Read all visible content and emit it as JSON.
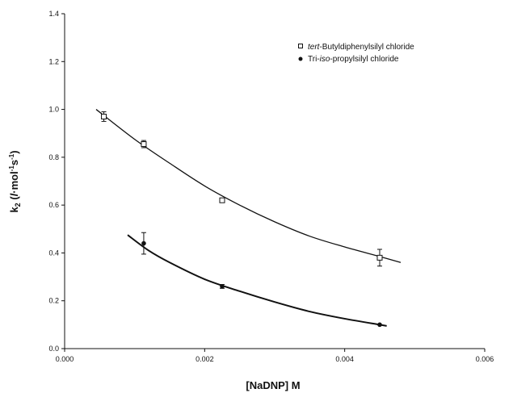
{
  "chart_data": {
    "type": "scatter",
    "title": "",
    "xlabel": "[NaDNP] M",
    "ylabel": {
      "main": "k",
      "sub": "2",
      "units_open": " (",
      "u1": "l",
      "u2": "·mol",
      "u3": "-1",
      "u4": "s",
      "u5": "-1",
      "units_close": ")"
    },
    "xlim": [
      0.0,
      0.006
    ],
    "ylim": [
      0.0,
      1.4
    ],
    "x_ticks": [
      0.0,
      0.002,
      0.004,
      0.006
    ],
    "x_tick_labels": [
      "0.000",
      "0.002",
      "0.004",
      "0.006"
    ],
    "y_ticks": [
      0.0,
      0.2,
      0.4,
      0.6,
      0.8,
      1.0,
      1.2,
      1.4
    ],
    "y_tick_labels": [
      "0.0",
      "0.2",
      "0.4",
      "0.6",
      "0.8",
      "1.0",
      "1.2",
      "1.4"
    ],
    "grid": false,
    "legend_position": "top-right",
    "series": [
      {
        "name": "tert-Butyldiphenylsilyl chloride",
        "legend_italic": "tert",
        "legend_rest": "-Butyldiphenylsilyl chloride",
        "marker": "open-square",
        "points": [
          {
            "x": 0.00056,
            "y": 0.97,
            "err": 0.02
          },
          {
            "x": 0.00113,
            "y": 0.855,
            "err": 0.015
          },
          {
            "x": 0.00225,
            "y": 0.62,
            "err": 0.008
          },
          {
            "x": 0.0045,
            "y": 0.38,
            "err": 0.035
          }
        ],
        "fit": [
          [
            0.00045,
            1.0
          ],
          [
            0.001,
            0.875
          ],
          [
            0.0015,
            0.775
          ],
          [
            0.002,
            0.68
          ],
          [
            0.0025,
            0.6
          ],
          [
            0.003,
            0.53
          ],
          [
            0.0035,
            0.47
          ],
          [
            0.004,
            0.425
          ],
          [
            0.0045,
            0.385
          ],
          [
            0.0048,
            0.36
          ]
        ]
      },
      {
        "name": "Tri-iso-propylsilyl chloride",
        "legend_pre": "Tri-",
        "legend_italic": "iso",
        "legend_rest": "-propylsilyl chloride",
        "marker": "filled-circle",
        "points": [
          {
            "x": 0.00113,
            "y": 0.44,
            "err": 0.045
          },
          {
            "x": 0.00225,
            "y": 0.26,
            "err": 0.008
          },
          {
            "x": 0.0045,
            "y": 0.1,
            "err": 0.0
          }
        ],
        "fit": [
          [
            0.0009,
            0.475
          ],
          [
            0.0012,
            0.41
          ],
          [
            0.0015,
            0.36
          ],
          [
            0.002,
            0.29
          ],
          [
            0.0025,
            0.24
          ],
          [
            0.003,
            0.195
          ],
          [
            0.0035,
            0.155
          ],
          [
            0.004,
            0.125
          ],
          [
            0.0045,
            0.1
          ],
          [
            0.0046,
            0.095
          ]
        ]
      }
    ]
  }
}
